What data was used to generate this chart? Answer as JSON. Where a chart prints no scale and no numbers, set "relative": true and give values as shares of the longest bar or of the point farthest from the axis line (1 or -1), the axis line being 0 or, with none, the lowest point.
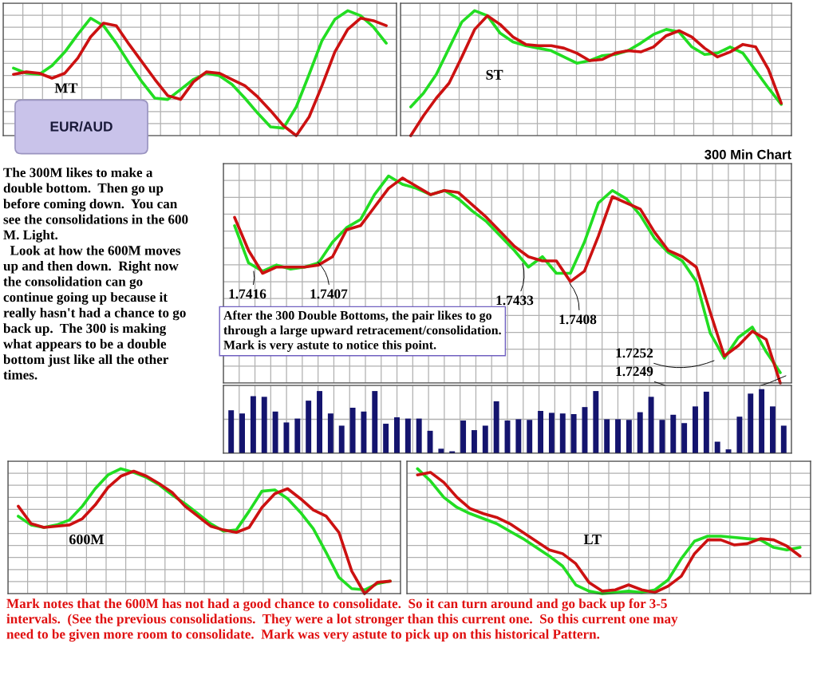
{
  "chart_data": [
    {
      "type": "line",
      "title": "MT",
      "relative": true,
      "tick_labels": false,
      "grid": true,
      "categories": [
        null,
        null,
        null,
        null,
        null,
        null,
        null,
        null,
        null,
        null,
        null,
        null,
        null,
        null,
        null,
        null,
        null,
        null,
        null,
        null,
        null,
        null,
        null,
        null,
        null,
        null,
        null,
        null,
        null,
        null
      ],
      "series": [
        {
          "color": "#22dd22",
          "values": [
            0.54,
            0.5,
            0.49,
            0.56,
            0.67,
            0.81,
            0.94,
            0.88,
            0.74,
            0.58,
            0.43,
            0.3,
            0.29,
            0.37,
            0.45,
            0.5,
            0.48,
            0.41,
            0.3,
            0.18,
            0.07,
            0.06,
            0.23,
            0.49,
            0.76,
            0.93,
            1.0,
            0.96,
            0.87,
            0.74
          ]
        },
        {
          "color": "#cc1111",
          "values": [
            0.49,
            0.51,
            0.5,
            0.46,
            0.5,
            0.62,
            0.79,
            0.9,
            0.88,
            0.73,
            0.59,
            0.45,
            0.32,
            0.29,
            0.43,
            0.51,
            0.5,
            0.45,
            0.4,
            0.31,
            0.2,
            0.08,
            0.0,
            0.15,
            0.4,
            0.67,
            0.85,
            0.94,
            0.92,
            0.88
          ]
        }
      ]
    },
    {
      "type": "line",
      "title": "ST",
      "relative": true,
      "tick_labels": false,
      "grid": true,
      "categories": [
        null,
        null,
        null,
        null,
        null,
        null,
        null,
        null,
        null,
        null,
        null,
        null,
        null,
        null,
        null,
        null,
        null,
        null,
        null,
        null,
        null,
        null,
        null,
        null,
        null,
        null,
        null,
        null,
        null,
        null
      ],
      "series": [
        {
          "color": "#22dd22",
          "values": [
            0.23,
            0.34,
            0.49,
            0.7,
            0.91,
            1.0,
            0.96,
            0.82,
            0.75,
            0.72,
            0.7,
            0.68,
            0.63,
            0.58,
            0.6,
            0.64,
            0.65,
            0.68,
            0.74,
            0.81,
            0.85,
            0.83,
            0.71,
            0.65,
            0.66,
            0.71,
            0.66,
            0.52,
            0.38,
            0.25
          ]
        },
        {
          "color": "#cc1111",
          "values": [
            0.0,
            0.16,
            0.3,
            0.42,
            0.63,
            0.85,
            0.96,
            0.89,
            0.79,
            0.73,
            0.72,
            0.72,
            0.7,
            0.66,
            0.6,
            0.61,
            0.66,
            0.68,
            0.67,
            0.71,
            0.8,
            0.84,
            0.79,
            0.7,
            0.63,
            0.67,
            0.73,
            0.71,
            0.53,
            0.26
          ]
        }
      ]
    },
    {
      "type": "line",
      "title": "300 Min Chart",
      "relative": true,
      "tick_labels": false,
      "grid": true,
      "categories": [
        null,
        null,
        null,
        null,
        null,
        null,
        null,
        null,
        null,
        null,
        null,
        null,
        null,
        null,
        null,
        null,
        null,
        null,
        null,
        null,
        null,
        null,
        null,
        null,
        null,
        null,
        null,
        null,
        null,
        null,
        null,
        null,
        null,
        null,
        null,
        null,
        null,
        null,
        null,
        null
      ],
      "series": [
        {
          "color": "#22dd22",
          "values": [
            0.76,
            0.58,
            0.54,
            0.57,
            0.55,
            0.56,
            0.58,
            0.68,
            0.75,
            0.79,
            0.91,
            1.0,
            0.96,
            0.94,
            0.91,
            0.93,
            0.89,
            0.83,
            0.78,
            0.71,
            0.64,
            0.56,
            0.61,
            0.53,
            0.53,
            0.68,
            0.87,
            0.93,
            0.89,
            0.81,
            0.7,
            0.63,
            0.59,
            0.49,
            0.24,
            0.12,
            0.22,
            0.27,
            0.15,
            0.05
          ]
        },
        {
          "color": "#cc1111",
          "values": [
            0.8,
            0.64,
            0.53,
            0.56,
            0.56,
            0.56,
            0.57,
            0.61,
            0.74,
            0.76,
            0.85,
            0.94,
            0.99,
            0.95,
            0.91,
            0.93,
            0.92,
            0.86,
            0.8,
            0.73,
            0.66,
            0.61,
            0.59,
            0.59,
            0.49,
            0.54,
            0.71,
            0.9,
            0.87,
            0.84,
            0.73,
            0.64,
            0.61,
            0.56,
            0.34,
            0.13,
            0.18,
            0.25,
            0.21,
            0.0
          ]
        }
      ],
      "annotations": [
        "1.7416",
        "1.7407",
        "1.7433",
        "1.7408",
        "1.7252",
        "1.7249",
        "After the 300 Double Bottoms, the pair likes to go\nthrough a large upward retracement/consolidation.\nMark is very astute to notice this point."
      ]
    },
    {
      "type": "bar",
      "relative": true,
      "tick_labels": false,
      "grid": true,
      "color": "#14146e",
      "categories": [
        null,
        null,
        null,
        null,
        null,
        null,
        null,
        null,
        null,
        null,
        null,
        null,
        null,
        null,
        null,
        null,
        null,
        null,
        null,
        null,
        null,
        null,
        null,
        null,
        null,
        null,
        null,
        null,
        null,
        null,
        null,
        null,
        null,
        null,
        null,
        null,
        null,
        null,
        null,
        null,
        null,
        null,
        null,
        null,
        null,
        null,
        null,
        null,
        null,
        null,
        null
      ],
      "values": [
        0.67,
        0.62,
        0.89,
        0.88,
        0.65,
        0.48,
        0.54,
        0.82,
        0.97,
        0.62,
        0.43,
        0.71,
        0.65,
        0.97,
        0.46,
        0.56,
        0.54,
        0.54,
        0.35,
        0.07,
        0.03,
        0.51,
        0.36,
        0.43,
        0.81,
        0.51,
        0.53,
        0.52,
        0.66,
        0.63,
        0.62,
        0.61,
        0.72,
        0.97,
        0.53,
        0.53,
        0.52,
        0.64,
        0.88,
        0.52,
        0.6,
        0.47,
        0.73,
        0.96,
        0.18,
        0.06,
        0.57,
        0.93,
        1.0,
        0.73,
        0.43
      ]
    },
    {
      "type": "line",
      "title": "600M",
      "relative": true,
      "tick_labels": false,
      "grid": true,
      "categories": [
        null,
        null,
        null,
        null,
        null,
        null,
        null,
        null,
        null,
        null,
        null,
        null,
        null,
        null,
        null,
        null,
        null,
        null,
        null,
        null,
        null,
        null,
        null,
        null,
        null,
        null,
        null,
        null,
        null,
        null
      ],
      "series": [
        {
          "color": "#22dd22",
          "values": [
            0.62,
            0.55,
            0.53,
            0.55,
            0.59,
            0.7,
            0.84,
            0.95,
            1.0,
            0.97,
            0.93,
            0.87,
            0.79,
            0.72,
            0.64,
            0.56,
            0.5,
            0.51,
            0.66,
            0.82,
            0.83,
            0.76,
            0.65,
            0.52,
            0.33,
            0.13,
            0.04,
            0.03,
            0.08,
            0.1
          ]
        },
        {
          "color": "#cc1111",
          "values": [
            0.7,
            0.56,
            0.53,
            0.54,
            0.55,
            0.6,
            0.71,
            0.85,
            0.94,
            0.98,
            0.94,
            0.88,
            0.81,
            0.7,
            0.62,
            0.54,
            0.51,
            0.49,
            0.53,
            0.69,
            0.8,
            0.84,
            0.76,
            0.67,
            0.62,
            0.49,
            0.18,
            0.0,
            0.09,
            0.1
          ]
        }
      ]
    },
    {
      "type": "line",
      "title": "LT",
      "relative": true,
      "tick_labels": false,
      "grid": true,
      "categories": [
        null,
        null,
        null,
        null,
        null,
        null,
        null,
        null,
        null,
        null,
        null,
        null,
        null,
        null,
        null,
        null,
        null,
        null,
        null,
        null,
        null,
        null,
        null,
        null,
        null,
        null,
        null,
        null,
        null,
        null
      ],
      "series": [
        {
          "color": "#22dd22",
          "values": [
            1.0,
            0.9,
            0.77,
            0.69,
            0.64,
            0.6,
            0.56,
            0.5,
            0.44,
            0.37,
            0.3,
            0.22,
            0.07,
            0.02,
            0.0,
            0.01,
            0.02,
            0.01,
            0.03,
            0.11,
            0.28,
            0.42,
            0.46,
            0.46,
            0.45,
            0.44,
            0.43,
            0.37,
            0.35,
            0.37
          ]
        },
        {
          "color": "#cc1111",
          "values": [
            0.95,
            0.97,
            0.89,
            0.77,
            0.68,
            0.64,
            0.61,
            0.56,
            0.49,
            0.42,
            0.35,
            0.32,
            0.24,
            0.09,
            0.02,
            0.03,
            0.07,
            0.03,
            0.01,
            0.06,
            0.14,
            0.32,
            0.43,
            0.43,
            0.39,
            0.4,
            0.44,
            0.43,
            0.38,
            0.3
          ]
        }
      ]
    },
    {
      "type": "other",
      "annotations": [
        "EUR/AUD",
        "The 300M likes to make a\ndouble bottom.  Then go up\nbefore coming down.  You can\nsee the consolidations in the 600\nM. Light.\n  Look at how the 600M moves\nup and then down.  Right now\nthe consolidation can go\ncontinue going up because it\nreally hasn't had a chance to go\nback up.  The 300 is making\nwhat appears to be a double\nbottom just like all the other\ntimes.",
        "Mark notes that the 600M has not had a good chance to consolidate.  So it can turn around and go back up for 3-5\nintervals.  (See the previous consolidations.  They were a lot stronger than this current one.  So this current one may\nneed to be given more room to consolidate.  Mark was very astute to pick up on this historical Pattern."
      ]
    }
  ]
}
